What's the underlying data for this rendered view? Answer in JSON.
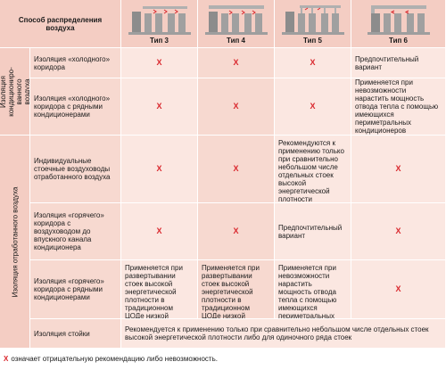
{
  "header": {
    "corner_label": "Способ распределения воздуха",
    "columns": [
      "Тип 3",
      "Тип 4",
      "Тип 5",
      "Тип 6"
    ]
  },
  "groups": {
    "conditioned": "Изоляция кондициониро-ванного воздуха",
    "exhaust": "Изоляция отработанного воздуха"
  },
  "rows": [
    {
      "label": "Изоляция «холодного» коридора",
      "cells": [
        "X",
        "X",
        "X",
        "Предпочтительный вариант"
      ]
    },
    {
      "label": "Изоляция «холодного» коридора с рядными кондиционерами",
      "cells": [
        "X",
        "X",
        "X",
        "Применяется при невозможности нарастить мощность отвода тепла с помощью имеющихся периметральных кондиционеров"
      ]
    },
    {
      "label": "Индивидуальные стоечные воздуховоды отработанного воздуха",
      "cells": [
        "X",
        "X",
        "Рекомендуются к применению только при сравнительно небольшом числе отдельных стоек высокой энергетической плотности",
        "X"
      ]
    },
    {
      "label": "Изоляция «горячего» коридора с воздуховодом до впускного канала кондиционера",
      "cells": [
        "X",
        "X",
        "Предпочтительный вариант",
        "X"
      ]
    },
    {
      "label": "Изоляция «горячего» коридора с рядными кондиционерами",
      "cells": [
        "Применяется при развертывании стоек высокой энергетической плотности в традиционном ЦОДе низкой энергетической плотности",
        "Применяется при развертывании стоек высокой энергетической плотности в традиционном ЦОДе низкой энергетической плотности",
        "Применяется при невозможности нарастить мощность отвода тепла с помощью имеющихся периметральных кондиционеров",
        "X"
      ]
    }
  ],
  "rack_row": {
    "label": "Изоляция стойки",
    "text": "Рекомендуется к применению только при сравнительно небольшом числе отдельных стоек высокой энергетической плотности либо для одиночного ряда стоек"
  },
  "footnote": {
    "mark": "X",
    "text": "означает отрицательную рекомендацию либо невозможность."
  },
  "colors": {
    "header_bg": "#f4cdc3",
    "row_label_bg": "#f7d9d0",
    "cell_bg": "#fbe7e1",
    "x_mark": "#d9262c",
    "rack": "#8c8c8c",
    "duct": "#b0b0b0",
    "air_arrow": "#d9262c"
  }
}
